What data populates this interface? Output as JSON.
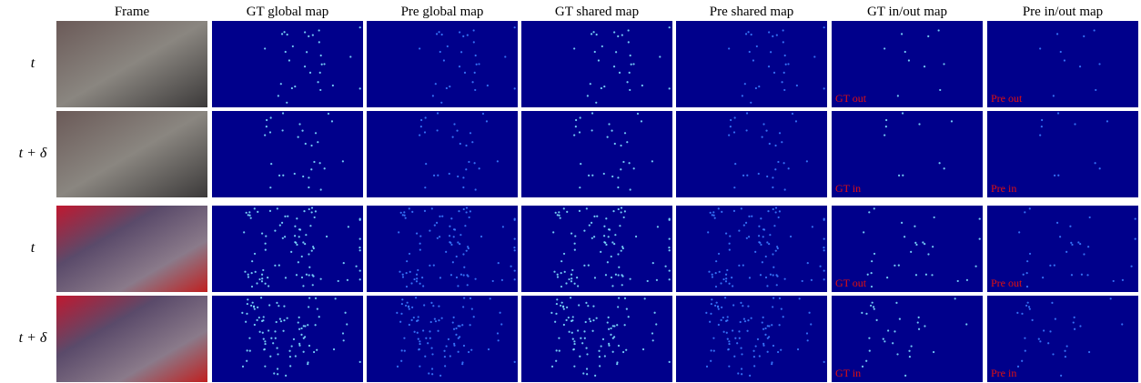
{
  "columns": [
    "Frame",
    "GT global map",
    "Pre global map",
    "GT shared map",
    "Pre shared map",
    "GT in/out map",
    "Pre in/out map"
  ],
  "rows": [
    {
      "label": "t",
      "gt_tag": "GT out",
      "pre_tag": "Pre out"
    },
    {
      "label": "t + δ",
      "gt_tag": "GT in",
      "pre_tag": "Pre in"
    },
    {
      "label": "t",
      "gt_tag": "GT out",
      "pre_tag": "Pre out"
    },
    {
      "label": "t + δ",
      "gt_tag": "GT in",
      "pre_tag": "Pre in"
    }
  ]
}
